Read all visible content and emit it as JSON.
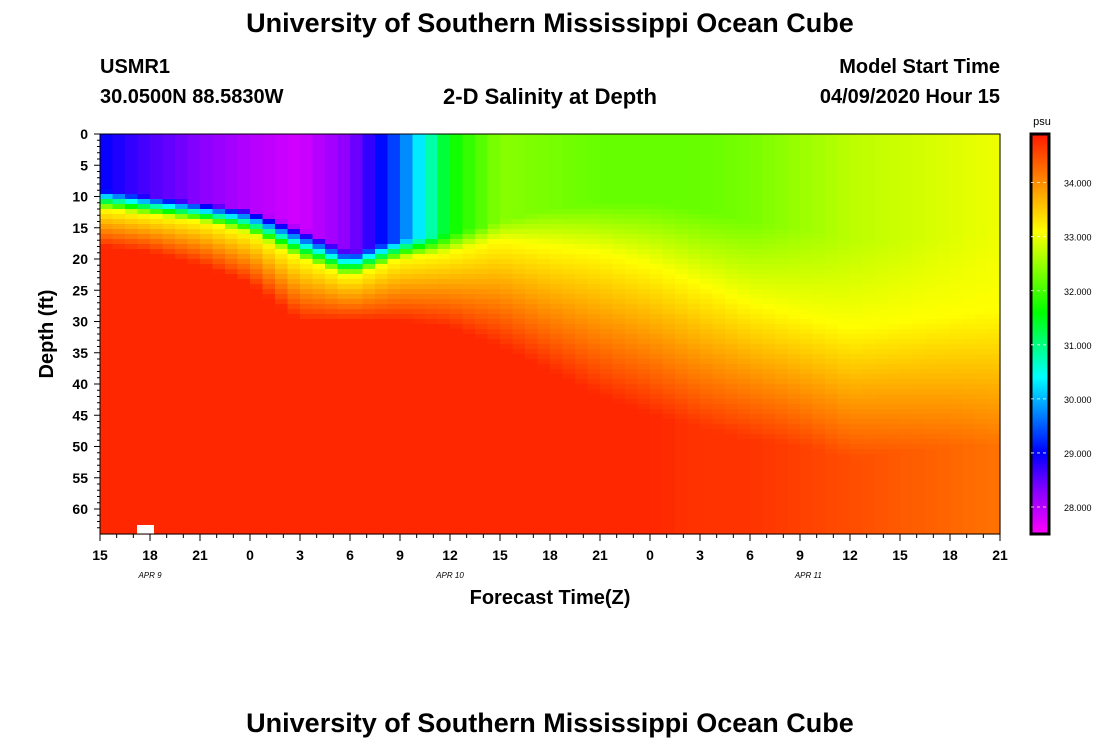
{
  "page": {
    "title_top": "University of Southern Mississippi Ocean Cube",
    "title_bottom": "University of Southern Mississippi Ocean Cube",
    "station_id": "USMR1",
    "station_coords": "30.0500N 88.5830W",
    "plot_title": "2-D Salinity at Depth",
    "model_start_label": "Model Start Time",
    "model_start_value": "04/09/2020 Hour 15"
  },
  "colors": {
    "magenta": "#ff00ff",
    "violet": "#8800ff",
    "blue": "#0000ff",
    "cyan": "#00ffff",
    "green": "#00ff00",
    "yellow": "#ffff00",
    "orange": "#ff8c00",
    "red": "#ff1a00"
  },
  "chart_data": {
    "type": "heatmap",
    "title": "2-D Salinity at Depth",
    "xlabel": "Forecast Time(Z)",
    "ylabel": "Depth (ft)",
    "x_tick_labels": [
      "15",
      "18",
      "21",
      "0",
      "3",
      "6",
      "9",
      "12",
      "15",
      "18",
      "21",
      "0",
      "3",
      "6",
      "9",
      "12",
      "15",
      "18",
      "21"
    ],
    "x_hours": [
      0,
      3,
      6,
      9,
      12,
      15,
      18,
      21,
      24,
      27,
      30,
      33,
      36,
      39,
      42,
      45,
      48,
      51,
      54
    ],
    "date_labels": [
      {
        "text": "APR 9",
        "hour": 3
      },
      {
        "text": "APR 10",
        "hour": 21
      },
      {
        "text": "APR 11",
        "hour": 42.5
      }
    ],
    "y_tick_labels": [
      "0",
      "5",
      "10",
      "15",
      "20",
      "25",
      "30",
      "35",
      "40",
      "45",
      "50",
      "55",
      "60"
    ],
    "y_ticks": [
      0,
      5,
      10,
      15,
      20,
      25,
      30,
      35,
      40,
      45,
      50,
      55,
      60
    ],
    "xlim": [
      0,
      54
    ],
    "ylim": [
      0,
      64
    ],
    "colorbar": {
      "unit": "psu",
      "min": 27.5,
      "max": 34.9,
      "tick_values": [
        28,
        29,
        30,
        31,
        32,
        33,
        34
      ],
      "tick_labels": [
        "28.000",
        "29.000",
        "30.000",
        "31.000",
        "32.000",
        "33.000",
        "34.000"
      ]
    },
    "depth_profile": {
      "hours": [
        0,
        3,
        6,
        9,
        12,
        15,
        18,
        21,
        24,
        27,
        30,
        33,
        36,
        39,
        42,
        45,
        48,
        51,
        54
      ],
      "fresh_layer_bottom_ft": [
        9,
        10,
        11,
        12,
        15,
        19,
        17,
        16,
        14,
        12,
        11,
        11,
        12,
        14,
        15,
        17,
        17,
        16,
        15
      ],
      "halocline_top_ft": [
        12,
        13,
        14,
        16,
        20,
        23,
        20,
        19,
        17,
        18,
        19,
        21,
        24,
        27,
        29,
        31,
        30,
        29,
        28
      ],
      "halocline_bottom_ft": [
        18,
        19,
        21,
        24,
        30,
        30,
        30,
        31,
        34,
        38,
        42,
        45,
        47,
        49,
        50,
        52,
        51,
        50,
        50
      ],
      "surface_salinity_psu": [
        29.0,
        28.6,
        28.3,
        28.0,
        27.8,
        28.3,
        29.5,
        31.6,
        32.4,
        32.3,
        32.2,
        32.2,
        32.2,
        32.3,
        32.5,
        32.7,
        32.8,
        32.9,
        33.0
      ],
      "bottom_salinity_psu": [
        34.8,
        34.8,
        34.8,
        34.8,
        34.8,
        34.8,
        34.8,
        34.8,
        34.8,
        34.8,
        34.8,
        34.8,
        34.7,
        34.7,
        34.6,
        34.5,
        34.4,
        34.3,
        34.2
      ]
    }
  }
}
